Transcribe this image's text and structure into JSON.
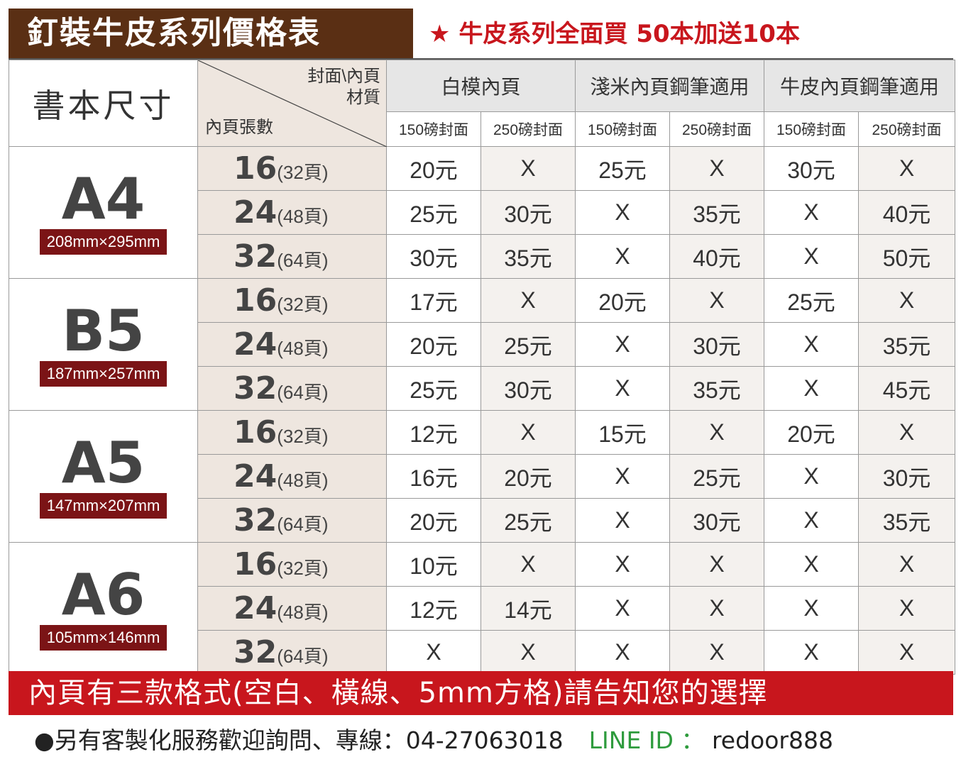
{
  "header": {
    "title": "釘裝牛皮系列價格表",
    "promo_star": "★",
    "promo_text": "牛皮系列全面買 50本加送10本"
  },
  "table": {
    "size_header": "書本尺寸",
    "diag_top_line1": "封面\\內頁",
    "diag_top_line2": "材質",
    "diag_bottom": "內頁張數",
    "groups": [
      "白模內頁",
      "淺米內頁鋼筆適用",
      "牛皮內頁鋼筆適用"
    ],
    "sub_headers": [
      "150磅封面",
      "250磅封面",
      "150磅封面",
      "250磅封面",
      "150磅封面",
      "250磅封面"
    ],
    "sizes": [
      {
        "name": "A4",
        "dims": "208mm×295mm",
        "rows": [
          {
            "sheets": "16",
            "pages": "(32頁)",
            "prices": [
              "20元",
              "X",
              "25元",
              "X",
              "30元",
              "X"
            ]
          },
          {
            "sheets": "24",
            "pages": "(48頁)",
            "prices": [
              "25元",
              "30元",
              "X",
              "35元",
              "X",
              "40元"
            ]
          },
          {
            "sheets": "32",
            "pages": "(64頁)",
            "prices": [
              "30元",
              "35元",
              "X",
              "40元",
              "X",
              "50元"
            ]
          }
        ]
      },
      {
        "name": "B5",
        "dims": "187mm×257mm",
        "rows": [
          {
            "sheets": "16",
            "pages": "(32頁)",
            "prices": [
              "17元",
              "X",
              "20元",
              "X",
              "25元",
              "X"
            ]
          },
          {
            "sheets": "24",
            "pages": "(48頁)",
            "prices": [
              "20元",
              "25元",
              "X",
              "30元",
              "X",
              "35元"
            ]
          },
          {
            "sheets": "32",
            "pages": "(64頁)",
            "prices": [
              "25元",
              "30元",
              "X",
              "35元",
              "X",
              "45元"
            ]
          }
        ]
      },
      {
        "name": "A5",
        "dims": "147mm×207mm",
        "rows": [
          {
            "sheets": "16",
            "pages": "(32頁)",
            "prices": [
              "12元",
              "X",
              "15元",
              "X",
              "20元",
              "X"
            ]
          },
          {
            "sheets": "24",
            "pages": "(48頁)",
            "prices": [
              "16元",
              "20元",
              "X",
              "25元",
              "X",
              "30元"
            ]
          },
          {
            "sheets": "32",
            "pages": "(64頁)",
            "prices": [
              "20元",
              "25元",
              "X",
              "30元",
              "X",
              "35元"
            ]
          }
        ]
      },
      {
        "name": "A6",
        "dims": "105mm×146mm",
        "rows": [
          {
            "sheets": "16",
            "pages": "(32頁)",
            "prices": [
              "10元",
              "X",
              "X",
              "X",
              "X",
              "X"
            ]
          },
          {
            "sheets": "24",
            "pages": "(48頁)",
            "prices": [
              "12元",
              "14元",
              "X",
              "X",
              "X",
              "X"
            ]
          },
          {
            "sheets": "32",
            "pages": "(64頁)",
            "prices": [
              "X",
              "X",
              "X",
              "X",
              "X",
              "X"
            ]
          }
        ]
      }
    ]
  },
  "banner": "內頁有三款格式(空白、橫線、5mm方格)請告知您的選擇",
  "footer": {
    "contact": "●另有客製化服務歡迎詢問、專線：04-27063018",
    "line_label": "LINE ID ：",
    "line_value": "redoor888"
  },
  "colors": {
    "title_bg": "#5a2f14",
    "promo": "#c8161d",
    "dims_badge": "#7b1416",
    "banner_bg": "#c8161d",
    "line_green": "#2e9b3d",
    "pages_col_bg": "#eee6df"
  }
}
